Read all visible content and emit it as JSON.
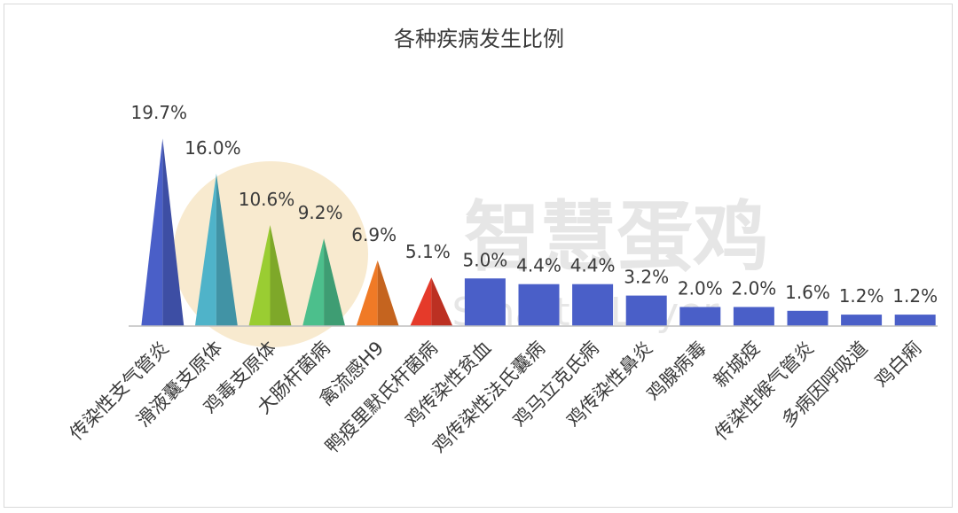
{
  "chart_data": {
    "type": "bar",
    "title": "各种疾病发生比例",
    "categories": [
      "传染性支气管炎",
      "滑液囊支原体",
      "鸡毒支原体",
      "大肠杆菌病",
      "禽流感H9",
      "鸭疫里默氏杆菌病",
      "鸡传染性贫血",
      "鸡传染性法氏囊病",
      "鸡马立克氏病",
      "鸡传染性鼻炎",
      "鸡腺病毒",
      "新城疫",
      "传染性喉气管炎",
      "多病因呼吸道",
      "鸡白痢"
    ],
    "values": [
      19.7,
      16.0,
      10.6,
      9.2,
      6.9,
      5.1,
      5.0,
      4.4,
      4.4,
      3.2,
      2.0,
      2.0,
      1.6,
      1.2,
      1.2
    ],
    "data_labels": [
      "19.7%",
      "16.0%",
      "10.6%",
      "9.2%",
      "6.9%",
      "5.1%",
      "5.0%",
      "4.4%",
      "4.4%",
      "3.2%",
      "2.0%",
      "2.0%",
      "1.6%",
      "1.2%",
      "1.2%"
    ],
    "mark_shapes": [
      "pyramid",
      "pyramid",
      "pyramid",
      "pyramid",
      "pyramid",
      "pyramid",
      "bar",
      "bar",
      "bar",
      "bar",
      "bar",
      "bar",
      "bar",
      "bar",
      "bar"
    ],
    "colors": [
      "#4a5fc8",
      "#4fb3c9",
      "#9acd32",
      "#4cbf8c",
      "#f07a26",
      "#e53a2a",
      "#4a5fc8",
      "#4a5fc8",
      "#4a5fc8",
      "#4a5fc8",
      "#4a5fc8",
      "#4a5fc8",
      "#4a5fc8",
      "#4a5fc8",
      "#4a5fc8"
    ],
    "ylim": [
      0,
      20
    ],
    "grid": false,
    "legend": "none",
    "axis_color": "#bfbfbf",
    "label_color": "#3a3a3a"
  },
  "watermark": {
    "text_cn": "智慧蛋鸡",
    "text_en": "SmarterLayer",
    "color": "#e6e6e6",
    "logo_color": "#f3d9a8"
  }
}
